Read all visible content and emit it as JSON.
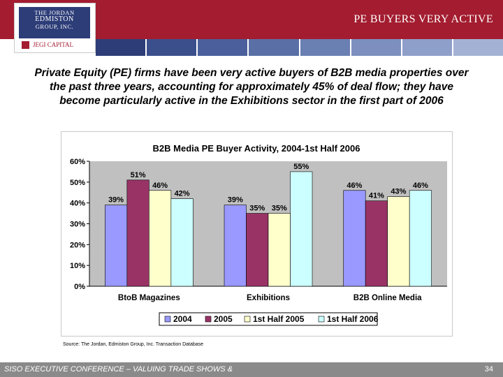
{
  "header": {
    "title": "PE BUYERS VERY ACTIVE",
    "logo_lines": [
      "THE JORDAN",
      "EDMISTON",
      "GROUP, INC."
    ],
    "logo_sub": "JEGI CAPITAL"
  },
  "colors": {
    "header": "#a31c2f",
    "stripe": [
      "#2d3d78",
      "#3b4f8c",
      "#4a5f9b",
      "#5a6fa6",
      "#6a7fb2",
      "#7c8fbe",
      "#8e9fca",
      "#a3b2d4"
    ],
    "footer": "#8a8a8a"
  },
  "intro_text": "Private Equity (PE) firms have been very active buyers of B2B media properties over the past three years, accounting for approximately 45% of deal flow; they have become particularly active in the Exhibitions sector in the first part of 2006",
  "chart_data": {
    "type": "bar",
    "title": "B2B Media PE Buyer Activity, 2004-1st Half 2006",
    "categories": [
      "BtoB Magazines",
      "Exhibitions",
      "B2B Online Media"
    ],
    "series": [
      {
        "name": "2004",
        "values": [
          39,
          39,
          46
        ],
        "color": "#9999ff"
      },
      {
        "name": "2005",
        "values": [
          51,
          35,
          41
        ],
        "color": "#993366"
      },
      {
        "name": "1st Half 2005",
        "values": [
          46,
          35,
          43
        ],
        "color": "#ffffcc"
      },
      {
        "name": "1st Half 2006",
        "values": [
          42,
          55,
          46
        ],
        "color": "#ccffff"
      }
    ],
    "ylim": [
      0,
      60
    ],
    "yticks": [
      0,
      10,
      20,
      30,
      40,
      50,
      60
    ],
    "ytick_labels": [
      "0%",
      "10%",
      "20%",
      "30%",
      "40%",
      "50%",
      "60%"
    ],
    "value_suffix": "%",
    "plot_background": "#c0c0c0",
    "legend_position": "bottom",
    "grid": false
  },
  "source_text": "Source: The Jordan, Edmiston Group, Inc. Transaction Database",
  "footer": {
    "text": "SISO EXECUTIVE CONFERENCE – VALUING TRADE SHOWS &",
    "page": "34"
  }
}
